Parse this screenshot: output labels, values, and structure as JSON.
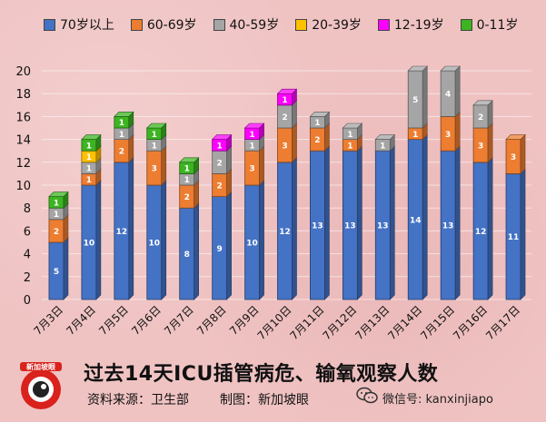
{
  "colors": {
    "70plus": "#4472c4",
    "60_69": "#ed7d31",
    "40_59": "#a5a5a5",
    "20_39": "#ffc000",
    "12_19": "#ff00ff",
    "0_11": "#3cb521"
  },
  "chart_data": {
    "type": "bar",
    "stacked": true,
    "categories": [
      "7月3日",
      "7月4日",
      "7月5日",
      "7月6日",
      "7月7日",
      "7月8日",
      "7月9日",
      "7月10日",
      "7月11日",
      "7月12日",
      "7月13日",
      "7月14日",
      "7月15日",
      "7月16日",
      "7月17日"
    ],
    "series": [
      {
        "name": "70岁以上",
        "color": "#4472c4",
        "values": [
          5,
          10,
          12,
          10,
          8,
          9,
          10,
          12,
          13,
          13,
          13,
          14,
          13,
          12,
          11
        ]
      },
      {
        "name": "60-69岁",
        "color": "#ed7d31",
        "values": [
          2,
          1,
          2,
          3,
          2,
          2,
          3,
          3,
          2,
          1,
          0,
          1,
          3,
          3,
          3
        ]
      },
      {
        "name": "40-59岁",
        "color": "#a5a5a5",
        "values": [
          1,
          1,
          1,
          1,
          1,
          2,
          1,
          2,
          1,
          1,
          1,
          5,
          4,
          2,
          0
        ]
      },
      {
        "name": "20-39岁",
        "color": "#ffc000",
        "values": [
          0,
          1,
          0,
          0,
          0,
          0,
          0,
          0,
          0,
          0,
          0,
          0,
          0,
          0,
          0
        ]
      },
      {
        "name": "12-19岁",
        "color": "#ff00ff",
        "values": [
          0,
          0,
          0,
          0,
          0,
          1,
          1,
          1,
          0,
          0,
          0,
          0,
          0,
          0,
          0
        ]
      },
      {
        "name": "0-11岁",
        "color": "#3cb521",
        "values": [
          1,
          1,
          1,
          1,
          1,
          0,
          0,
          0,
          0,
          0,
          0,
          0,
          0,
          0,
          0
        ]
      }
    ],
    "ylim": [
      0,
      20
    ],
    "yticks": [
      0,
      2,
      4,
      6,
      8,
      10,
      12,
      14,
      16,
      18,
      20
    ],
    "grid": true,
    "legend": "top",
    "title": "过去14天ICU插管病危、输氧观察人数"
  },
  "footer": {
    "title": "过去14天ICU插管病危、输氧观察人数",
    "source": "资料来源：卫生部",
    "producer": "制图：新加坡眼",
    "wechat": "微信号: kanxinjiapo",
    "logo_text": "新加坡眼"
  },
  "icons": {
    "logo": "camera-eye-logo-icon",
    "wechat": "wechat-icon"
  }
}
